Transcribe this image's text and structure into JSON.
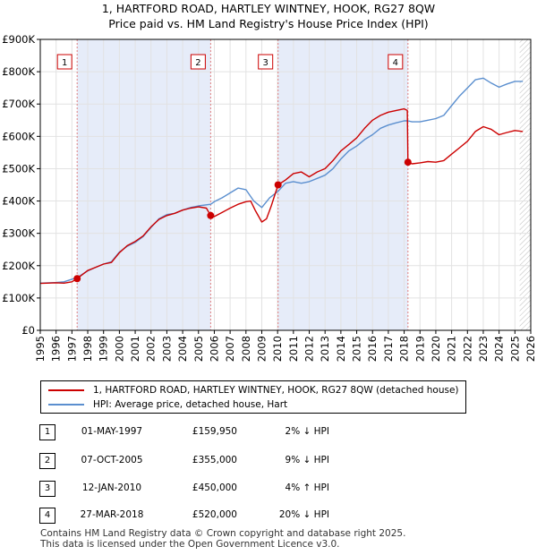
{
  "title_line1": "1, HARTFORD ROAD, HARTLEY WINTNEY, HOOK, RG27 8QW",
  "title_line2": "Price paid vs. HM Land Registry's House Price Index (HPI)",
  "chart_data": {
    "type": "line",
    "ylim": [
      0,
      900000
    ],
    "xlim": [
      1995,
      2026
    ],
    "y_ticks": [
      0,
      100000,
      200000,
      300000,
      400000,
      500000,
      600000,
      700000,
      800000,
      900000
    ],
    "y_tick_labels": [
      "£0",
      "£100K",
      "£200K",
      "£300K",
      "£400K",
      "£500K",
      "£600K",
      "£700K",
      "£800K",
      "£900K"
    ],
    "x_tick_labels": [
      "1995",
      "1996",
      "1997",
      "1998",
      "1999",
      "2000",
      "2001",
      "2002",
      "2003",
      "2004",
      "2005",
      "2006",
      "2007",
      "2008",
      "2009",
      "2010",
      "2011",
      "2012",
      "2013",
      "2014",
      "2015",
      "2016",
      "2017",
      "2018",
      "2019",
      "2020",
      "2021",
      "2022",
      "2023",
      "2024",
      "2025",
      "2026"
    ],
    "shaded_periods": [
      [
        1997.33,
        2005.77
      ],
      [
        2010.03,
        2018.24
      ]
    ],
    "future_hatch_from": 2025.3,
    "series": [
      {
        "name": "1, HARTFORD ROAD, HARTLEY WINTNEY, HOOK, RG27 8QW (detached house)",
        "color": "#cc0000",
        "points": [
          [
            1995.0,
            145000
          ],
          [
            1996.0,
            147000
          ],
          [
            1996.5,
            146000
          ],
          [
            1997.0,
            150000
          ],
          [
            1997.33,
            159950
          ],
          [
            1998.0,
            185000
          ],
          [
            1998.5,
            195000
          ],
          [
            1999.0,
            205000
          ],
          [
            1999.5,
            210000
          ],
          [
            2000.0,
            240000
          ],
          [
            2000.5,
            262000
          ],
          [
            2001.0,
            275000
          ],
          [
            2001.5,
            292000
          ],
          [
            2002.0,
            320000
          ],
          [
            2002.5,
            343000
          ],
          [
            2003.0,
            355000
          ],
          [
            2003.5,
            362000
          ],
          [
            2004.0,
            372000
          ],
          [
            2004.5,
            378000
          ],
          [
            2005.0,
            382000
          ],
          [
            2005.5,
            378000
          ],
          [
            2005.77,
            355000
          ],
          [
            2006.0,
            352000
          ],
          [
            2006.5,
            365000
          ],
          [
            2007.0,
            378000
          ],
          [
            2007.5,
            390000
          ],
          [
            2008.0,
            398000
          ],
          [
            2008.3,
            400000
          ],
          [
            2008.6,
            370000
          ],
          [
            2009.0,
            335000
          ],
          [
            2009.3,
            345000
          ],
          [
            2009.6,
            385000
          ],
          [
            2010.03,
            450000
          ],
          [
            2010.5,
            465000
          ],
          [
            2011.0,
            485000
          ],
          [
            2011.5,
            490000
          ],
          [
            2012.0,
            475000
          ],
          [
            2012.5,
            490000
          ],
          [
            2013.0,
            500000
          ],
          [
            2013.5,
            525000
          ],
          [
            2014.0,
            555000
          ],
          [
            2014.5,
            575000
          ],
          [
            2015.0,
            595000
          ],
          [
            2015.5,
            625000
          ],
          [
            2016.0,
            650000
          ],
          [
            2016.5,
            665000
          ],
          [
            2017.0,
            675000
          ],
          [
            2017.5,
            680000
          ],
          [
            2018.0,
            685000
          ],
          [
            2018.2,
            680000
          ],
          [
            2018.24,
            520000
          ],
          [
            2018.5,
            515000
          ],
          [
            2019.0,
            518000
          ],
          [
            2019.5,
            522000
          ],
          [
            2020.0,
            520000
          ],
          [
            2020.5,
            525000
          ],
          [
            2021.0,
            545000
          ],
          [
            2021.5,
            565000
          ],
          [
            2022.0,
            585000
          ],
          [
            2022.5,
            615000
          ],
          [
            2023.0,
            630000
          ],
          [
            2023.5,
            622000
          ],
          [
            2024.0,
            605000
          ],
          [
            2024.5,
            612000
          ],
          [
            2025.0,
            618000
          ],
          [
            2025.5,
            615000
          ]
        ]
      },
      {
        "name": "HPI: Average price, detached house, Hart",
        "color": "#5b8fcf",
        "points": [
          [
            1995.0,
            146000
          ],
          [
            1996.0,
            148000
          ],
          [
            1996.5,
            150000
          ],
          [
            1997.0,
            158000
          ],
          [
            1997.33,
            163000
          ],
          [
            1998.0,
            184000
          ],
          [
            1998.5,
            195000
          ],
          [
            1999.0,
            205000
          ],
          [
            1999.5,
            212000
          ],
          [
            2000.0,
            242000
          ],
          [
            2000.5,
            260000
          ],
          [
            2001.0,
            272000
          ],
          [
            2001.5,
            290000
          ],
          [
            2002.0,
            318000
          ],
          [
            2002.5,
            345000
          ],
          [
            2003.0,
            358000
          ],
          [
            2003.5,
            362000
          ],
          [
            2004.0,
            372000
          ],
          [
            2004.5,
            380000
          ],
          [
            2005.0,
            385000
          ],
          [
            2005.77,
            390000
          ],
          [
            2006.0,
            398000
          ],
          [
            2006.5,
            410000
          ],
          [
            2007.0,
            425000
          ],
          [
            2007.5,
            440000
          ],
          [
            2008.0,
            435000
          ],
          [
            2008.5,
            400000
          ],
          [
            2009.0,
            380000
          ],
          [
            2009.5,
            410000
          ],
          [
            2010.03,
            430000
          ],
          [
            2010.5,
            455000
          ],
          [
            2011.0,
            460000
          ],
          [
            2011.5,
            455000
          ],
          [
            2012.0,
            460000
          ],
          [
            2012.5,
            470000
          ],
          [
            2013.0,
            480000
          ],
          [
            2013.5,
            500000
          ],
          [
            2014.0,
            530000
          ],
          [
            2014.5,
            555000
          ],
          [
            2015.0,
            570000
          ],
          [
            2015.5,
            590000
          ],
          [
            2016.0,
            605000
          ],
          [
            2016.5,
            625000
          ],
          [
            2017.0,
            635000
          ],
          [
            2017.5,
            642000
          ],
          [
            2018.0,
            648000
          ],
          [
            2018.24,
            648000
          ],
          [
            2018.5,
            645000
          ],
          [
            2019.0,
            645000
          ],
          [
            2019.5,
            650000
          ],
          [
            2020.0,
            655000
          ],
          [
            2020.5,
            665000
          ],
          [
            2021.0,
            695000
          ],
          [
            2021.5,
            725000
          ],
          [
            2022.0,
            750000
          ],
          [
            2022.5,
            775000
          ],
          [
            2023.0,
            780000
          ],
          [
            2023.5,
            765000
          ],
          [
            2024.0,
            752000
          ],
          [
            2024.5,
            762000
          ],
          [
            2025.0,
            770000
          ],
          [
            2025.5,
            770000
          ]
        ]
      }
    ],
    "markers": [
      {
        "id": "1",
        "x": 1997.33,
        "y": 159950
      },
      {
        "id": "2",
        "x": 2005.77,
        "y": 355000
      },
      {
        "id": "3",
        "x": 2010.03,
        "y": 450000
      },
      {
        "id": "4",
        "x": 2018.24,
        "y": 520000
      }
    ]
  },
  "legend": {
    "property": "1, HARTFORD ROAD, HARTLEY WINTNEY, HOOK, RG27 8QW (detached house)",
    "hpi": "HPI: Average price, detached house, Hart",
    "property_color": "#cc0000",
    "hpi_color": "#5b8fcf"
  },
  "transactions": [
    {
      "num": "1",
      "date": "01-MAY-1997",
      "price": "£159,950",
      "hpi": "2% ↓ HPI"
    },
    {
      "num": "2",
      "date": "07-OCT-2005",
      "price": "£355,000",
      "hpi": "9% ↓ HPI"
    },
    {
      "num": "3",
      "date": "12-JAN-2010",
      "price": "£450,000",
      "hpi": "4% ↑ HPI"
    },
    {
      "num": "4",
      "date": "27-MAR-2018",
      "price": "£520,000",
      "hpi": "20% ↓ HPI"
    }
  ],
  "footer": {
    "line1": "Contains HM Land Registry data © Crown copyright and database right 2025.",
    "line2": "This data is licensed under the Open Government Licence v3.0."
  }
}
